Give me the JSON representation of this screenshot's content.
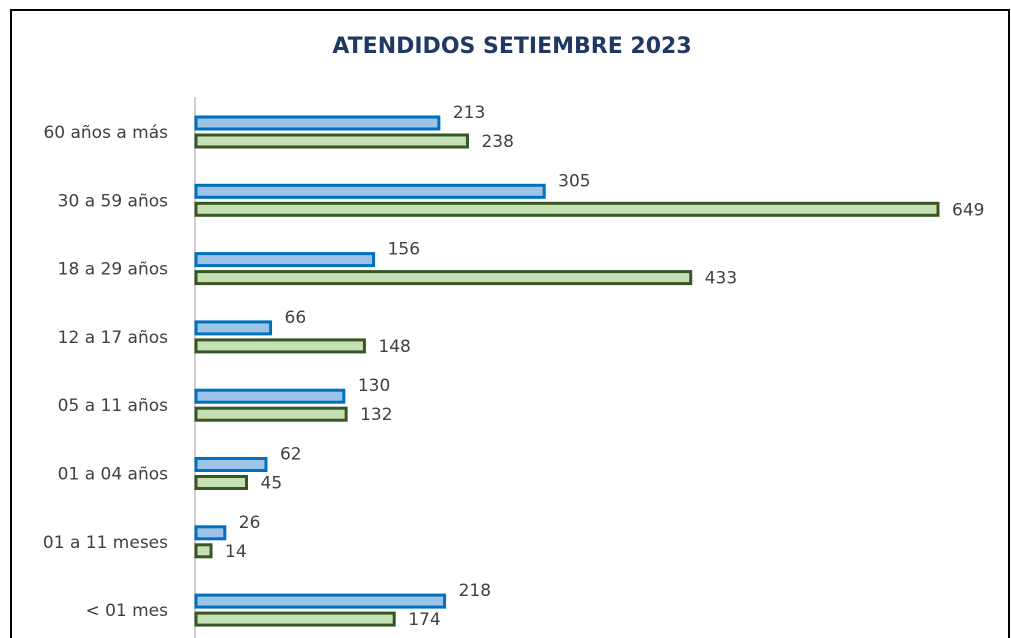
{
  "chart_data": {
    "type": "bar",
    "orientation": "horizontal",
    "title": "ATENDIDOS SETIEMBRE 2023",
    "categories": [
      "60 años a más",
      "30 a 59 años",
      "18 a 29 años",
      "12 a 17 años",
      "05 a 11 años",
      "01 a 04 años",
      "01 a 11 meses",
      "< 01 mes"
    ],
    "series": [
      {
        "color": "#9dc3e6",
        "edge": "#0070c0",
        "values": [
          213,
          305,
          156,
          66,
          130,
          62,
          26,
          218
        ]
      },
      {
        "color": "#c5e0b4",
        "edge": "#375623",
        "values": [
          238,
          649,
          433,
          148,
          132,
          45,
          14,
          174
        ]
      }
    ]
  }
}
